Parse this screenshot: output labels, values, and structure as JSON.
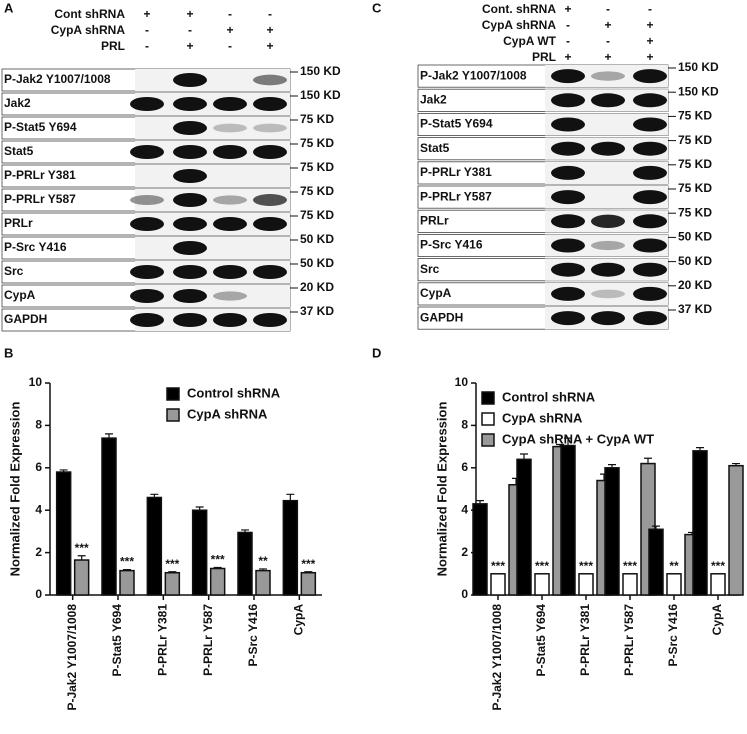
{
  "panel_labels": [
    "A",
    "B",
    "C",
    "D"
  ],
  "blots": [
    {
      "conditions": [
        {
          "label": "Cont shRNA",
          "signs": [
            "+",
            "+",
            "-",
            "-"
          ]
        },
        {
          "label": "CypA shRNA",
          "signs": [
            "-",
            "-",
            "+",
            "+"
          ]
        },
        {
          "label": "PRL",
          "signs": [
            "-",
            "+",
            "-",
            "+"
          ]
        }
      ],
      "rows": [
        {
          "label": "P-Jak2 Y1007/1008",
          "marker": "150 KD"
        },
        {
          "label": "Jak2",
          "marker": "150 KD"
        },
        {
          "label": "P-Stat5 Y694",
          "marker": "75 KD"
        },
        {
          "label": "Stat5",
          "marker": "75 KD"
        },
        {
          "label": "P-PRLr Y381",
          "marker": "75 KD"
        },
        {
          "label": "P-PRLr Y587",
          "marker": "75 KD"
        },
        {
          "label": "PRLr",
          "marker": "75 KD"
        },
        {
          "label": "P-Src Y416",
          "marker": "50 KD"
        },
        {
          "label": "Src",
          "marker": "50 KD"
        },
        {
          "label": "CypA",
          "marker": "20 KD"
        },
        {
          "label": "GAPDH",
          "marker": "37 KD"
        }
      ]
    },
    {
      "conditions": [
        {
          "label": "Cont. shRNA",
          "signs": [
            "+",
            "-",
            "-"
          ]
        },
        {
          "label": "CypA shRNA",
          "signs": [
            "-",
            "+",
            "+"
          ]
        },
        {
          "label": "CypA WT",
          "signs": [
            "-",
            "-",
            "+"
          ]
        },
        {
          "label": "PRL",
          "signs": [
            "+",
            "+",
            "+"
          ]
        }
      ],
      "rows": [
        {
          "label": "P-Jak2 Y1007/1008",
          "marker": "150 KD"
        },
        {
          "label": "Jak2",
          "marker": "150 KD"
        },
        {
          "label": "P-Stat5 Y694",
          "marker": "75 KD"
        },
        {
          "label": "Stat5",
          "marker": "75 KD"
        },
        {
          "label": "P-PRLr Y381",
          "marker": "75 KD"
        },
        {
          "label": "P-PRLr Y587",
          "marker": "75 KD"
        },
        {
          "label": "PRLr",
          "marker": "75 KD"
        },
        {
          "label": "P-Src Y416",
          "marker": "50 KD"
        },
        {
          "label": "Src",
          "marker": "50 KD"
        },
        {
          "label": "CypA",
          "marker": "20 KD"
        },
        {
          "label": "GAPDH",
          "marker": "37 KD"
        }
      ]
    }
  ],
  "chart_data": [
    {
      "type": "bar",
      "y_label": "Normalized Fold Expression",
      "categories": [
        "P-Jak2 Y1007/1008",
        "P-Stat5 Y694",
        "P-PRLr Y381",
        "P-PRLr Y587",
        "P-Src Y416",
        "CypA"
      ],
      "series": [
        {
          "name": "Control shRNA",
          "color": "#000000",
          "values": [
            5.8,
            7.4,
            4.6,
            4.0,
            2.95,
            4.45
          ],
          "errors": [
            0.1,
            0.2,
            0.15,
            0.15,
            0.12,
            0.3
          ]
        },
        {
          "name": "CypA shRNA",
          "color": "#999999",
          "values": [
            1.65,
            1.15,
            1.05,
            1.25,
            1.15,
            1.05
          ],
          "errors": [
            0.2,
            0.05,
            0.05,
            0.05,
            0.08,
            0.05
          ]
        }
      ],
      "significance": [
        "***",
        "***",
        "***",
        "***",
        "**",
        "***"
      ],
      "ylim": [
        0,
        10
      ],
      "yticks": [
        0,
        2,
        4,
        6,
        8,
        10
      ]
    },
    {
      "type": "bar",
      "y_label": "Normalized Fold Expression",
      "categories": [
        "P-Jak2 Y1007/1008",
        "P-Stat5 Y694",
        "P-PRLr Y381",
        "P-PRLr Y587",
        "P-Src Y416",
        "CypA"
      ],
      "series": [
        {
          "name": "Control shRNA",
          "color": "#000000",
          "values": [
            4.3,
            6.4,
            7.05,
            6.0,
            3.1,
            6.8
          ],
          "errors": [
            0.15,
            0.25,
            0.35,
            0.15,
            0.15,
            0.15
          ]
        },
        {
          "name": "CypA shRNA",
          "color": "#ffffff",
          "values": [
            1,
            1,
            1,
            1,
            1,
            1
          ],
          "errors": [
            0,
            0,
            0,
            0,
            0,
            0
          ]
        },
        {
          "name": "CypA shRNA + CypA WT",
          "color": "#999999",
          "values": [
            5.2,
            7.0,
            5.4,
            6.2,
            2.85,
            6.1
          ],
          "errors": [
            0.3,
            0.1,
            0.3,
            0.25,
            0.1,
            0.1
          ]
        }
      ],
      "significance": [
        "***",
        "***",
        "***",
        "***",
        "**",
        "***"
      ],
      "ylim": [
        0,
        10
      ],
      "yticks": [
        0,
        2,
        4,
        6,
        8,
        10
      ]
    }
  ]
}
